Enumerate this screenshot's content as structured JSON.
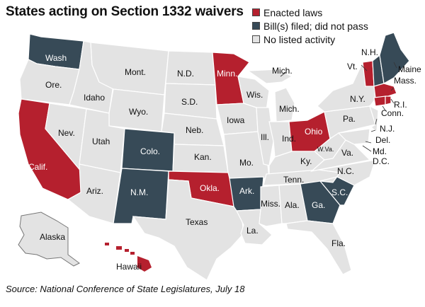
{
  "title": "States acting on Section 1332 waivers",
  "legend": [
    {
      "label": "Enacted laws",
      "color": "#b5202e"
    },
    {
      "label": "Bill(s) filed; did not pass",
      "color": "#374a57"
    },
    {
      "label": "No listed activity",
      "color": "#e3e3e3"
    }
  ],
  "source": "Source: National Conference of State Legislatures, July 18",
  "colors": {
    "enacted": "#b5202e",
    "filed": "#374a57",
    "none": "#e3e3e3",
    "border": "#ffffff",
    "outline": "#555555"
  },
  "states": {
    "wash": "Wash",
    "ore": "Ore.",
    "idaho": "Idaho",
    "mont": "Mont.",
    "nd": "N.D.",
    "minn": "Minn.",
    "wyo": "Wyo.",
    "sd": "S.D.",
    "wis": "Wis.",
    "mich": "Mich.",
    "mich_up": "Mich.",
    "nev": "Nev.",
    "utah": "Utah",
    "calif": "Calif.",
    "colo": "Colo.",
    "neb": "Neb.",
    "iowa": "Iowa",
    "ill": "Ill.",
    "ind": "Ind.",
    "ohio": "Ohio",
    "pa": "Pa.",
    "ny": "N.Y.",
    "vt": "Vt.",
    "nh": "N.H.",
    "maine": "Maine",
    "mass": "Mass.",
    "ri": "R.I.",
    "conn": "Conn.",
    "nj": "N.J.",
    "del": "Del.",
    "md": "Md.",
    "dc": "D.C.",
    "wva": "W.Va.",
    "va": "Va.",
    "ky": "Ky.",
    "kan": "Kan.",
    "mo": "Mo.",
    "arizona": "Ariz.",
    "nm": "N.M.",
    "okla": "Okla.",
    "ark": "Ark.",
    "tenn": "Tenn.",
    "nc": "N.C.",
    "sc": "S.C.",
    "ga": "Ga.",
    "ala": "Ala.",
    "miss": "Miss.",
    "la": "La.",
    "texas": "Texas",
    "fla": "Fla.",
    "alaska": "Alaska",
    "hawaii": "Hawaii"
  }
}
